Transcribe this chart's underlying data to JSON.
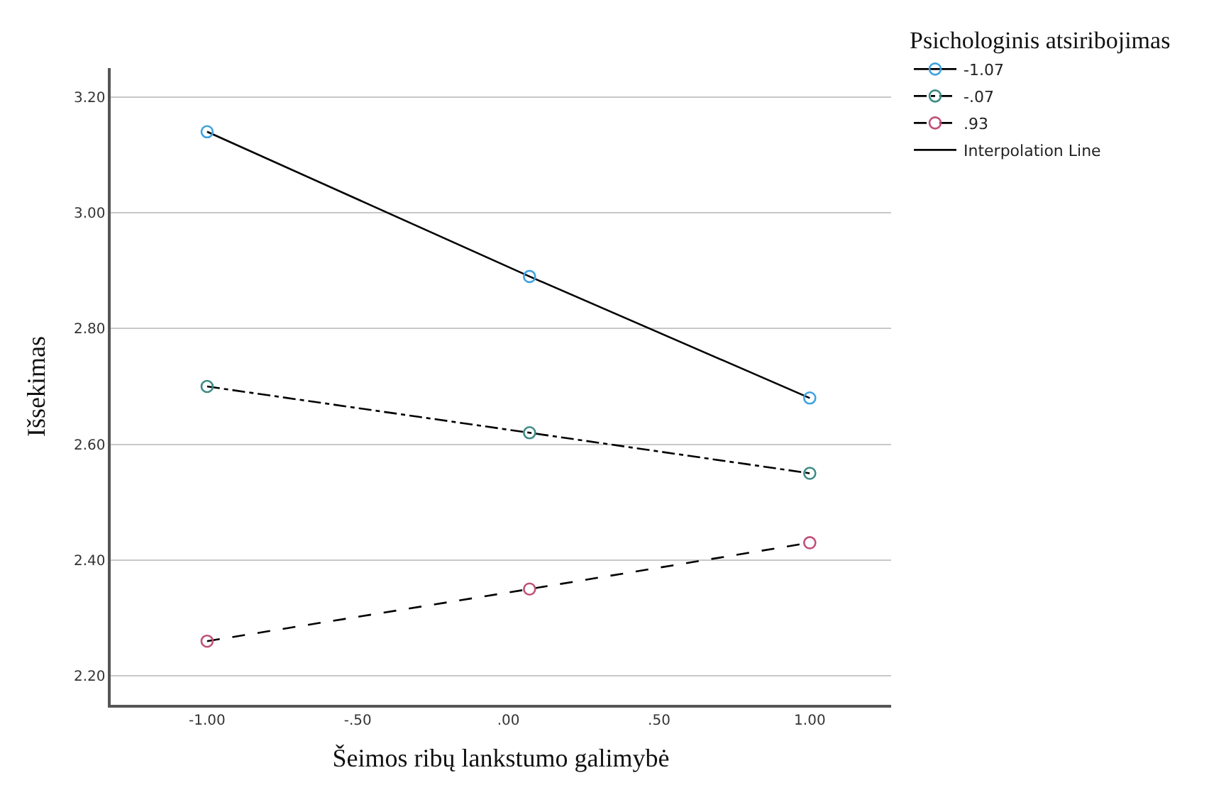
{
  "chart_data": {
    "type": "line",
    "xlabel": "Šeimos ribų lankstumo galimybė",
    "ylabel": "Išsekimas",
    "legend_title": "Psichologinis atsiribojimas",
    "x": [
      -1.0,
      0.07,
      1.0
    ],
    "series": [
      {
        "name": "-1.07",
        "color": "#3fa3e0",
        "line_style": "solid",
        "values": [
          3.14,
          2.89,
          2.68
        ]
      },
      {
        "name": "-.07",
        "color": "#3d8b85",
        "line_style": "dashdot",
        "values": [
          2.7,
          2.62,
          2.55
        ]
      },
      {
        "name": ".93",
        "color": "#c0507a",
        "line_style": "dashed",
        "values": [
          2.26,
          2.35,
          2.43
        ]
      },
      {
        "name": "Interpolation Line",
        "type": "line",
        "marker": "none",
        "color": "#000000",
        "values": [
          null,
          null,
          null
        ]
      }
    ],
    "marker": "circle",
    "xlim": [
      -1.32,
      1.27
    ],
    "xticks": [
      {
        "value": -1,
        "label": "-1.00"
      },
      {
        "value": -0.5,
        "label": "-.50"
      },
      {
        "value": 0,
        "label": ".00"
      },
      {
        "value": 0.5,
        "label": ".50"
      },
      {
        "value": 1,
        "label": "1.00"
      }
    ],
    "ylim": [
      2.15,
      3.25
    ],
    "yticks": [
      {
        "value": 2.2,
        "label": "2.20"
      },
      {
        "value": 2.4,
        "label": "2.40"
      },
      {
        "value": 2.6,
        "label": "2.60"
      },
      {
        "value": 2.8,
        "label": "2.80"
      },
      {
        "value": 3.0,
        "label": "3.00"
      },
      {
        "value": 3.2,
        "label": "3.20"
      }
    ],
    "grid": "y",
    "legend": "top right"
  }
}
